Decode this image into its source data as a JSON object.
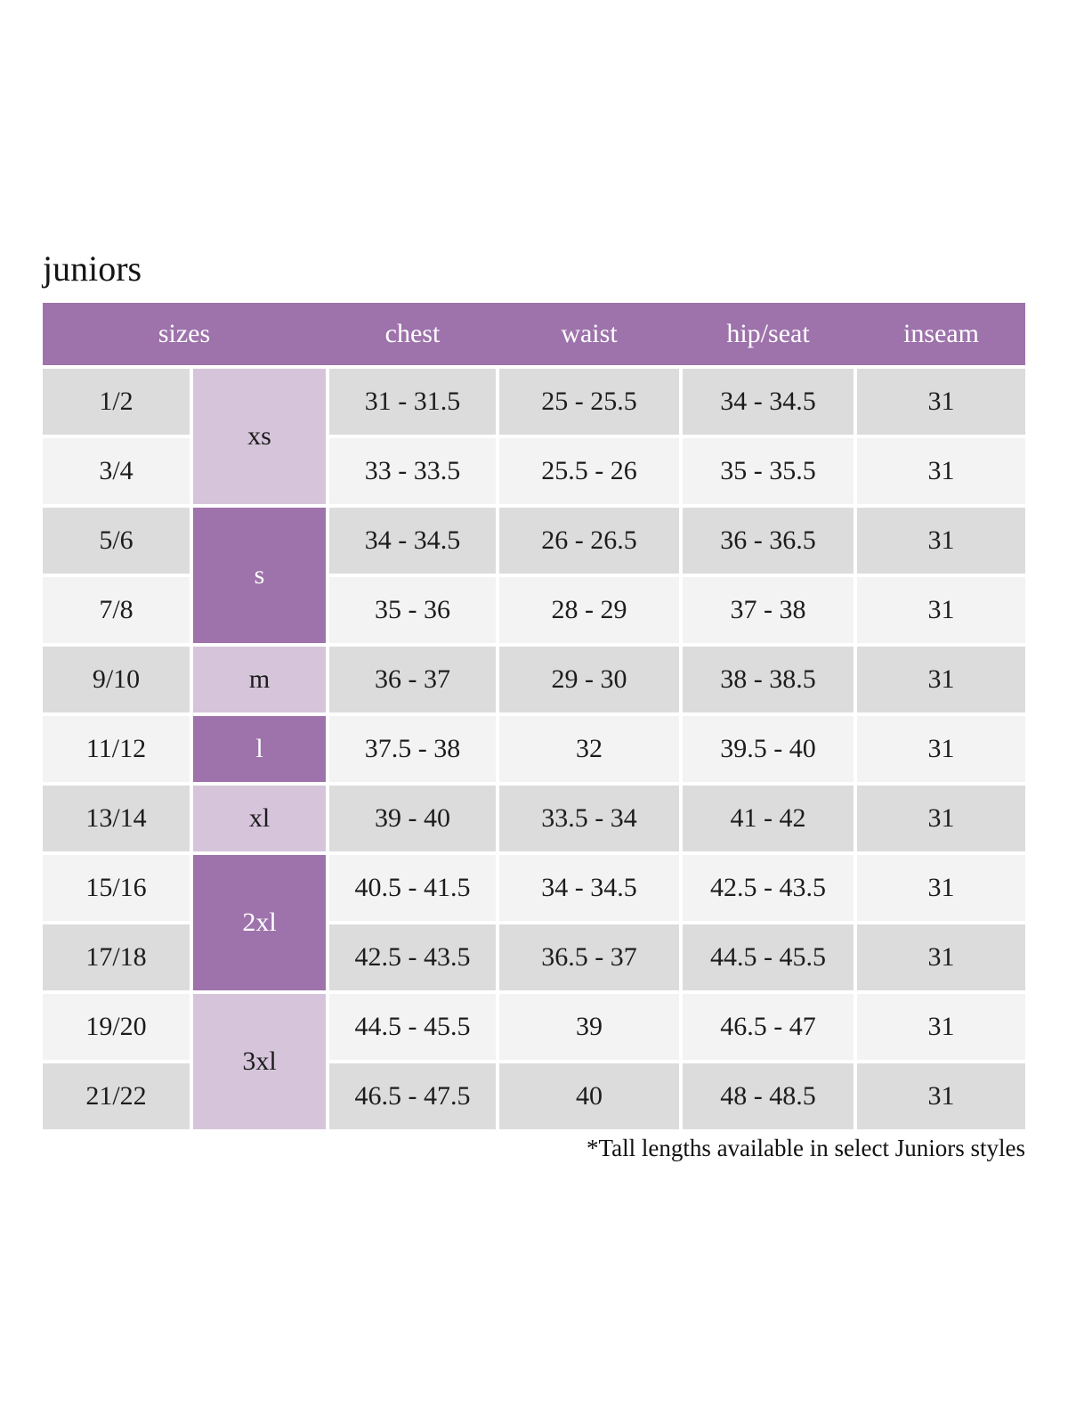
{
  "title": "juniors",
  "footnote": "*Tall lengths available in select Juniors styles",
  "colors": {
    "header_purple": "#9e73ab",
    "light_purple": "#d6c5da",
    "row_gray": "#dcdcdc",
    "row_light": "#f3f3f3"
  },
  "table": {
    "columns": {
      "sizes": "sizes",
      "chest": "chest",
      "waist": "waist",
      "hip_seat": "hip/seat",
      "inseam": "inseam"
    },
    "size_groups": [
      {
        "label": "xs",
        "shade": "light-purple",
        "spans_rows": 2
      },
      {
        "label": "s",
        "shade": "dark-purple",
        "spans_rows": 2
      },
      {
        "label": "m",
        "shade": "light-purple",
        "spans_rows": 1
      },
      {
        "label": "l",
        "shade": "dark-purple",
        "spans_rows": 1
      },
      {
        "label": "xl",
        "shade": "light-purple",
        "spans_rows": 1
      },
      {
        "label": "2xl",
        "shade": "dark-purple",
        "spans_rows": 2
      },
      {
        "label": "3xl",
        "shade": "light-purple",
        "spans_rows": 2
      }
    ],
    "rows": [
      {
        "size": "1/2",
        "group": "xs",
        "chest": "31 - 31.5",
        "waist": "25 - 25.5",
        "hip_seat": "34 - 34.5",
        "inseam": "31"
      },
      {
        "size": "3/4",
        "group": "xs",
        "chest": "33 - 33.5",
        "waist": "25.5 - 26",
        "hip_seat": "35 - 35.5",
        "inseam": "31"
      },
      {
        "size": "5/6",
        "group": "s",
        "chest": "34 - 34.5",
        "waist": "26 - 26.5",
        "hip_seat": "36 - 36.5",
        "inseam": "31"
      },
      {
        "size": "7/8",
        "group": "s",
        "chest": "35 - 36",
        "waist": "28 - 29",
        "hip_seat": "37 - 38",
        "inseam": "31"
      },
      {
        "size": "9/10",
        "group": "m",
        "chest": "36 - 37",
        "waist": "29 - 30",
        "hip_seat": "38 - 38.5",
        "inseam": "31"
      },
      {
        "size": "11/12",
        "group": "l",
        "chest": "37.5 - 38",
        "waist": "32",
        "hip_seat": "39.5 - 40",
        "inseam": "31"
      },
      {
        "size": "13/14",
        "group": "xl",
        "chest": "39 - 40",
        "waist": "33.5 - 34",
        "hip_seat": "41 - 42",
        "inseam": "31"
      },
      {
        "size": "15/16",
        "group": "2xl",
        "chest": "40.5 - 41.5",
        "waist": "34 - 34.5",
        "hip_seat": "42.5 - 43.5",
        "inseam": "31"
      },
      {
        "size": "17/18",
        "group": "2xl",
        "chest": "42.5 - 43.5",
        "waist": "36.5 - 37",
        "hip_seat": "44.5 - 45.5",
        "inseam": "31"
      },
      {
        "size": "19/20",
        "group": "3xl",
        "chest": "44.5 - 45.5",
        "waist": "39",
        "hip_seat": "46.5 - 47",
        "inseam": "31"
      },
      {
        "size": "21/22",
        "group": "3xl",
        "chest": "46.5 - 47.5",
        "waist": "40",
        "hip_seat": "48 - 48.5",
        "inseam": "31"
      }
    ]
  }
}
